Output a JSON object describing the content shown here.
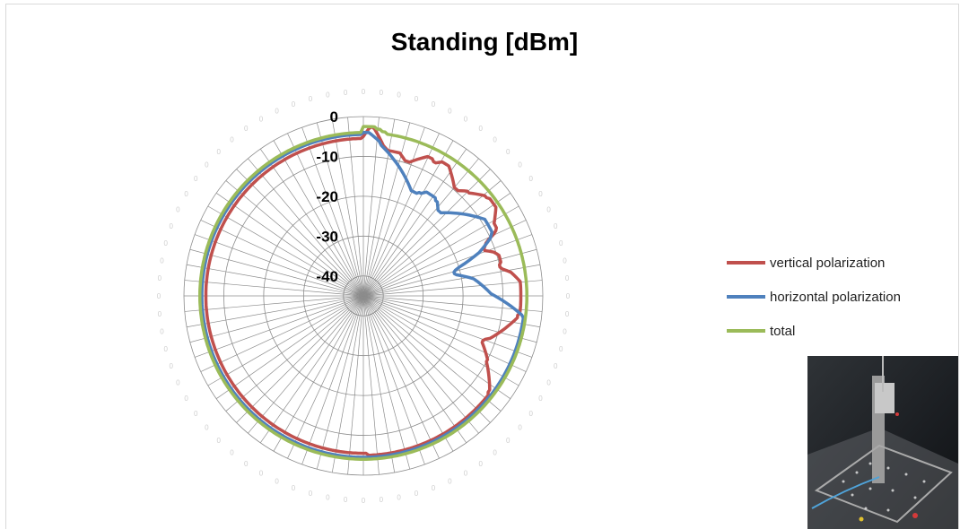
{
  "chart_data": {
    "type": "radar",
    "title": "Standing [dBm]",
    "radial_axis": {
      "min": -45,
      "max": 0,
      "ticks": [
        0,
        -10,
        -20,
        -30,
        -40
      ]
    },
    "angle_step_deg": 5,
    "series": [
      {
        "name": "vertical polarization",
        "color": "#c0504d",
        "values": [
          -5,
          -4,
          -3,
          -2.5,
          -3,
          -4,
          -5,
          -6,
          -7,
          -7.5,
          -8,
          -8,
          -8,
          -8,
          -8,
          -8,
          -8.5,
          -9,
          -9.5,
          -9.5,
          -9.5,
          -9,
          -8.5,
          -8,
          -7.5,
          -7,
          -6.5,
          -6.5,
          -6.5,
          -7,
          -7,
          -6.5,
          -6,
          -6,
          -6,
          -6,
          -6.5,
          -7,
          -7.5,
          -8,
          -8.5,
          -9,
          -9.5,
          -9.5,
          -9.5,
          -9,
          -8.5,
          -8,
          -8,
          -7.5,
          -7,
          -6.5,
          -6,
          -5.5,
          -5.5,
          -5,
          -5,
          -5,
          -5,
          -5,
          -5.5,
          -6,
          -6.5,
          -7,
          -7.5,
          -7.5,
          -7.5,
          -8,
          -9,
          -10.5,
          -11.5,
          -12,
          -12.5,
          -12.5,
          -11.5,
          -10.5,
          -10,
          -9.5,
          -9.5,
          -9.5,
          -9.5,
          -10,
          -10,
          -9.5,
          -8.5,
          -7.5,
          -7,
          -6.5,
          -6,
          -5.5,
          -5.5,
          -5.5,
          -5.5,
          -5.5,
          -5.5,
          -5.5,
          -5.5,
          -5.5,
          -5.5,
          -5.5,
          -5.5,
          -5.5,
          -6,
          -6,
          -6.5,
          -7,
          -7.5,
          -8,
          -8.5,
          -9,
          -9.5,
          -10,
          -10.5,
          -11,
          -11.5,
          -12.5,
          -13,
          -13,
          -12.5,
          -12,
          -11.5,
          -11,
          -10.5,
          -10,
          -10,
          -9.5,
          -9,
          -8.5,
          -8,
          -7.5,
          -7,
          -6.5,
          -6,
          -5.5,
          -5.5,
          -5,
          -5,
          -5,
          -5,
          -5,
          -5,
          -5,
          -5,
          -5,
          -5,
          -5,
          -5,
          -5,
          -5,
          -5,
          -5,
          -5,
          -5,
          -5,
          -5,
          -5,
          -5,
          -5,
          -5,
          -5,
          -5,
          -5,
          -5,
          -5,
          -5,
          -5,
          -5,
          -5,
          -5,
          -5,
          -5,
          -5,
          -5,
          -5,
          -5,
          -5,
          -5,
          -5,
          -5,
          -5,
          -5,
          -5,
          -5,
          -5,
          -5,
          -5,
          -5,
          -5,
          -5.5,
          -5.5,
          -5.5,
          -5.5,
          -5.5,
          -5.5,
          -5.5,
          -5.5,
          -5.5,
          -5.5,
          -5.5,
          -5.5,
          -5.5,
          -5.5,
          -5.5,
          -5.5,
          -5.5,
          -5.5,
          -5.5,
          -5.5,
          -5.5,
          -5.5,
          -5.5,
          -5.5,
          -5.5,
          -5.5,
          -5.5,
          -5.5,
          -5.5,
          -5.5,
          -5.5,
          -5.5,
          -5.5,
          -5.5,
          -5.5,
          -5.5,
          -5.5,
          -5.5,
          -5.5,
          -5.5,
          -5.5,
          -5.5,
          -5.5,
          -5.5,
          -5.5,
          -5.5,
          -5.5,
          -5.5,
          -5.5,
          -5.5,
          -5.5,
          -5.5,
          -5.5,
          -5.5,
          -5.5,
          -5.5,
          -5.5,
          -5.5,
          -5.5,
          -5.5,
          -5.5,
          -5.5,
          -5.5,
          -5.5,
          -5.5,
          -5.5,
          -5.5,
          -5.5,
          -5.5,
          -5.5,
          -5.5,
          -5.5,
          -5.5,
          -5.5,
          -5.5,
          -5.5,
          -5.5,
          -5.5,
          -5.5,
          -5.5,
          -5.5,
          -5.5,
          -5.5,
          -5.5,
          -5.5,
          -5.5,
          -5.5,
          -5.5,
          -5.5,
          -5.5,
          -5.5,
          -5.5,
          -5.5,
          -5.5,
          -5.5,
          -5.5,
          -5.5,
          -5.5,
          -5.5,
          -5.5,
          -5.5,
          -5.5,
          -5.5,
          -5.5,
          -5.5,
          -5.5,
          -5.5,
          -5.5,
          -5.5,
          -5.5,
          -5.5,
          -5.5,
          -5.5,
          -5.5,
          -5.5,
          -5.5,
          -5.5,
          -5.5,
          -5.5,
          -5.5,
          -5.5,
          -5.5,
          -5.5,
          -5.5,
          -5.5,
          -5.5,
          -5.5,
          -5.5,
          -5.5,
          -5.5,
          -5.5,
          -5.5,
          -5.5,
          -5.5,
          -5.5,
          -5.5,
          -5.5,
          -5.5,
          -5.5,
          -5.5,
          -5.5,
          -5.5,
          -5.5,
          -5.5,
          -5.5,
          -5.5,
          -5.5,
          -5.5,
          -5.5,
          -5.5,
          -5.5,
          -5.5,
          -5.5,
          -5.5,
          -5.5,
          -5.5,
          -5.5,
          -5.5,
          -5.5,
          -5.5,
          -5.5,
          -5.5,
          -5.5,
          -5.5,
          -5.5,
          -5.5,
          -5.5,
          -5.5,
          -5.5,
          -5.5,
          -5.5,
          -5.5,
          -5.5,
          -5.5,
          -5.5,
          -5.5,
          -5.5,
          -5.5,
          -5.5,
          -5.5,
          -5.5,
          -5.5,
          -5.5,
          -5.5,
          -5.5,
          -5.5,
          -5.5,
          -5.5,
          -5.5,
          -5.5
        ]
      },
      {
        "name": "horizontal polarization",
        "color": "#4f81bd",
        "values": [
          -4,
          -4,
          -4,
          -4.5,
          -5,
          -5.5,
          -6,
          -7,
          -7.5,
          -8,
          -8.5,
          -9,
          -9.5,
          -10,
          -10.5,
          -11,
          -11.5,
          -12,
          -12.5,
          -13,
          -13.5,
          -14,
          -14.5,
          -15,
          -15.5,
          -16,
          -16,
          -16,
          -16,
          -15.5,
          -15.5,
          -15,
          -14.5,
          -14.5,
          -14.5,
          -14.5,
          -14.5,
          -14.5,
          -15,
          -15,
          -15.5,
          -16,
          -16.5,
          -16.5,
          -16.5,
          -16,
          -15.5,
          -15,
          -14.5,
          -14,
          -13.5,
          -13,
          -12.5,
          -12,
          -11.5,
          -11,
          -10.5,
          -10,
          -9.5,
          -9,
          -9,
          -9,
          -9,
          -9,
          -9,
          -9,
          -9.5,
          -10,
          -11,
          -12,
          -13,
          -14,
          -15.5,
          -17,
          -18.5,
          -20,
          -21,
          -21.5,
          -21.5,
          -21,
          -20,
          -19,
          -18,
          -17,
          -16.5,
          -16,
          -15.5,
          -15,
          -14.5,
          -14,
          -13.5,
          -13,
          -12,
          -11,
          -10,
          -9,
          -8,
          -7,
          -6,
          -5,
          -4.5,
          -4.5,
          -4.5,
          -4.5,
          -4.5,
          -4.5,
          -4.5,
          -4.5,
          -4.5,
          -4.5,
          -4.5,
          -4.5,
          -4.5,
          -4.5,
          -4.5,
          -4.5,
          -4.5,
          -4.5,
          -4.5,
          -4.5,
          -4.5,
          -4.5,
          -4.5,
          -4.5,
          -4.5,
          -4.5,
          -4.5,
          -4.5,
          -4.5,
          -4.5,
          -4.5,
          -4.5,
          -4.5,
          -4.5,
          -4.5,
          -4.5,
          -4.5,
          -4.5,
          -4.5,
          -4.5,
          -4.5,
          -4.5,
          -4.5,
          -4.5,
          -4.5,
          -4.5,
          -4.5,
          -4.5,
          -4.5,
          -4.5,
          -4.5,
          -4.5,
          -4.5,
          -4.5,
          -4.5,
          -4.5,
          -4.5,
          -4.5,
          -4.5,
          -4.5,
          -4.5,
          -4.5,
          -4.5,
          -4.5,
          -4.5,
          -4.5,
          -4.5,
          -4.5,
          -4.5,
          -4.5,
          -4.5,
          -4.5,
          -4.5,
          -4.5,
          -4.5,
          -4.5,
          -4.5,
          -4.5,
          -4.5,
          -4.5,
          -4.5,
          -4.5,
          -4.5,
          -4.5,
          -4.5,
          -4.5,
          -4.5,
          -4.5,
          -4.5,
          -4.5,
          -4.5,
          -4.5,
          -4.5,
          -4.5,
          -4.5,
          -4.5,
          -4.5,
          -4.5,
          -4.5,
          -4.5,
          -4.5,
          -4.5,
          -4.5,
          -4.5,
          -4.5,
          -4.5,
          -4.5,
          -4.5,
          -4.5,
          -4.5,
          -4.5,
          -4.5,
          -4.5,
          -4.5,
          -4.5,
          -4.5,
          -4.5,
          -4.5,
          -4.5,
          -4.5,
          -4.5,
          -4.5,
          -4.5,
          -4.5,
          -4.5,
          -4.5,
          -4.5,
          -4.5,
          -4.5,
          -4.5,
          -4.5,
          -4.5,
          -4.5,
          -4.5,
          -4.5,
          -4.5,
          -4.5,
          -4.5,
          -4.5,
          -4.5,
          -4.5,
          -4.5,
          -4.5,
          -4.5,
          -4.5,
          -4.5,
          -4.5,
          -4.5,
          -4.5,
          -4.5,
          -4.5,
          -4.5,
          -4.5,
          -4.5,
          -4.5,
          -4.5,
          -4.5,
          -4.5,
          -4.5,
          -4.5,
          -4.5,
          -4.5,
          -4.5,
          -4.5,
          -4.5,
          -4.5,
          -4.5,
          -4.5,
          -4.5,
          -4.5,
          -4.5,
          -4.5,
          -4.5,
          -4.5,
          -4.5,
          -4.5,
          -4.5,
          -4.5,
          -4.5,
          -4.5,
          -4.5,
          -4.5,
          -4.5,
          -4.5,
          -4.5,
          -4.5,
          -4.5,
          -4.5,
          -4.5,
          -4.5,
          -4.5,
          -4.5,
          -4.5,
          -4.5,
          -4.5,
          -4.5,
          -4.5,
          -4.5,
          -4.5,
          -4.5,
          -4.5,
          -4.5,
          -4.5,
          -4.5,
          -4.5,
          -4.5,
          -4.5,
          -4.5,
          -4.5,
          -4.5,
          -4.5,
          -4.5,
          -4.5,
          -4.5,
          -4.5,
          -4.5,
          -4.5,
          -4.5,
          -4.5,
          -4.5,
          -4.5,
          -4.5,
          -4.5,
          -4.5,
          -4.5,
          -4.5,
          -4.5,
          -4.5,
          -4.5,
          -4.5,
          -4.5,
          -4.5,
          -4.5,
          -4.5,
          -4.5,
          -4.5,
          -4.5,
          -4.5,
          -4.5,
          -4.5,
          -4.5,
          -4.5,
          -4.5,
          -4.5,
          -4.5,
          -4.5,
          -4.5,
          -4.5,
          -4.5,
          -4.5,
          -4.5,
          -4.5,
          -4.5,
          -4.5,
          -4.5,
          -4.5,
          -4.5,
          -4.5,
          -4.5,
          -4.5,
          -4.5,
          -4.5,
          -4.5,
          -4.5,
          -4.5,
          -4.5,
          -4.5,
          -4.5
        ]
      },
      {
        "name": "total",
        "color": "#9bbb59",
        "values": [
          -2.5,
          -2.5,
          -2.5,
          -2.5,
          -2.5,
          -3,
          -3,
          -3.5,
          -3.5,
          -4,
          -4,
          -4,
          -4,
          -4,
          -4,
          -4,
          -4,
          -4,
          -4,
          -4,
          -4,
          -4,
          -4,
          -4,
          -4,
          -4,
          -4,
          -4,
          -4,
          -4,
          -4,
          -4,
          -4,
          -4,
          -4,
          -4,
          -4,
          -4,
          -4,
          -4,
          -4,
          -4,
          -4,
          -4,
          -4,
          -4,
          -4,
          -4,
          -4,
          -4,
          -4,
          -4,
          -4,
          -4,
          -4,
          -4,
          -4,
          -4,
          -4,
          -4,
          -4,
          -4,
          -4,
          -4,
          -4,
          -4,
          -4,
          -4,
          -4,
          -4,
          -4,
          -4,
          -4,
          -4,
          -4,
          -4,
          -4,
          -4,
          -4,
          -4,
          -4,
          -4,
          -4,
          -4,
          -4,
          -4,
          -4,
          -4,
          -4,
          -4,
          -4,
          -4,
          -4,
          -4,
          -4,
          -4,
          -4,
          -4,
          -4,
          -4,
          -4,
          -4,
          -4,
          -4,
          -4,
          -4,
          -4,
          -4,
          -4,
          -4,
          -4,
          -4,
          -4,
          -4,
          -4,
          -4,
          -4,
          -4,
          -4,
          -4,
          -4,
          -4,
          -4,
          -4,
          -4,
          -4,
          -4,
          -4,
          -4,
          -4,
          -4,
          -4,
          -4,
          -4,
          -4,
          -4,
          -4,
          -4,
          -4,
          -4,
          -4,
          -4,
          -4,
          -4,
          -4,
          -4,
          -4,
          -4,
          -4,
          -4,
          -4,
          -4,
          -4,
          -4,
          -4,
          -4,
          -4,
          -4,
          -4,
          -4,
          -4,
          -4,
          -4,
          -4,
          -4,
          -4,
          -4,
          -4,
          -4,
          -4,
          -4,
          -4,
          -4,
          -4,
          -4,
          -4,
          -4,
          -4,
          -4,
          -4,
          -4,
          -4,
          -4,
          -4,
          -4,
          -4,
          -4,
          -4,
          -4,
          -4,
          -4,
          -4,
          -4,
          -4,
          -4,
          -4,
          -4,
          -4,
          -4,
          -4,
          -4,
          -4,
          -4,
          -4,
          -4,
          -4,
          -4,
          -4,
          -4,
          -4,
          -4,
          -4,
          -4,
          -4,
          -4,
          -4,
          -4,
          -4,
          -4,
          -4,
          -4,
          -4,
          -4,
          -4,
          -4,
          -4,
          -4,
          -4,
          -4,
          -4,
          -4,
          -4,
          -4,
          -4,
          -4,
          -4,
          -4,
          -4,
          -4,
          -4,
          -4,
          -4,
          -4,
          -4,
          -4,
          -4,
          -4,
          -4,
          -4,
          -4,
          -4,
          -4,
          -4,
          -4,
          -4,
          -4,
          -4,
          -4,
          -4,
          -4,
          -4,
          -4,
          -4,
          -4,
          -4,
          -4,
          -4,
          -4,
          -4,
          -4,
          -4,
          -4,
          -4,
          -4,
          -4,
          -4,
          -4,
          -4,
          -4,
          -4,
          -4,
          -4,
          -4,
          -4,
          -4,
          -4,
          -4,
          -4,
          -4,
          -4,
          -4,
          -4,
          -4,
          -4,
          -4,
          -4,
          -4,
          -4,
          -4,
          -4,
          -4,
          -4,
          -4,
          -4,
          -4,
          -4,
          -4,
          -4,
          -4,
          -4,
          -4,
          -4,
          -4,
          -4,
          -4,
          -4,
          -4,
          -4,
          -4,
          -4,
          -4,
          -4,
          -4,
          -4,
          -4,
          -4,
          -4,
          -4,
          -4,
          -4,
          -4,
          -4,
          -4,
          -4,
          -4,
          -4,
          -4,
          -4,
          -4,
          -4,
          -4,
          -4,
          -4,
          -4,
          -4,
          -4,
          -4,
          -4,
          -4,
          -4,
          -4,
          -4,
          -4,
          -4,
          -4,
          -4,
          -4,
          -4,
          -4,
          -4,
          -4,
          -4,
          -4,
          -4,
          -4,
          -4,
          -4,
          -4,
          -4,
          -4,
          -4,
          -4,
          -4,
          -4,
          -4,
          -4,
          -4,
          -4,
          -4,
          -4,
          -4,
          -4
        ]
      }
    ],
    "grid": true,
    "legend_position": "right"
  }
}
